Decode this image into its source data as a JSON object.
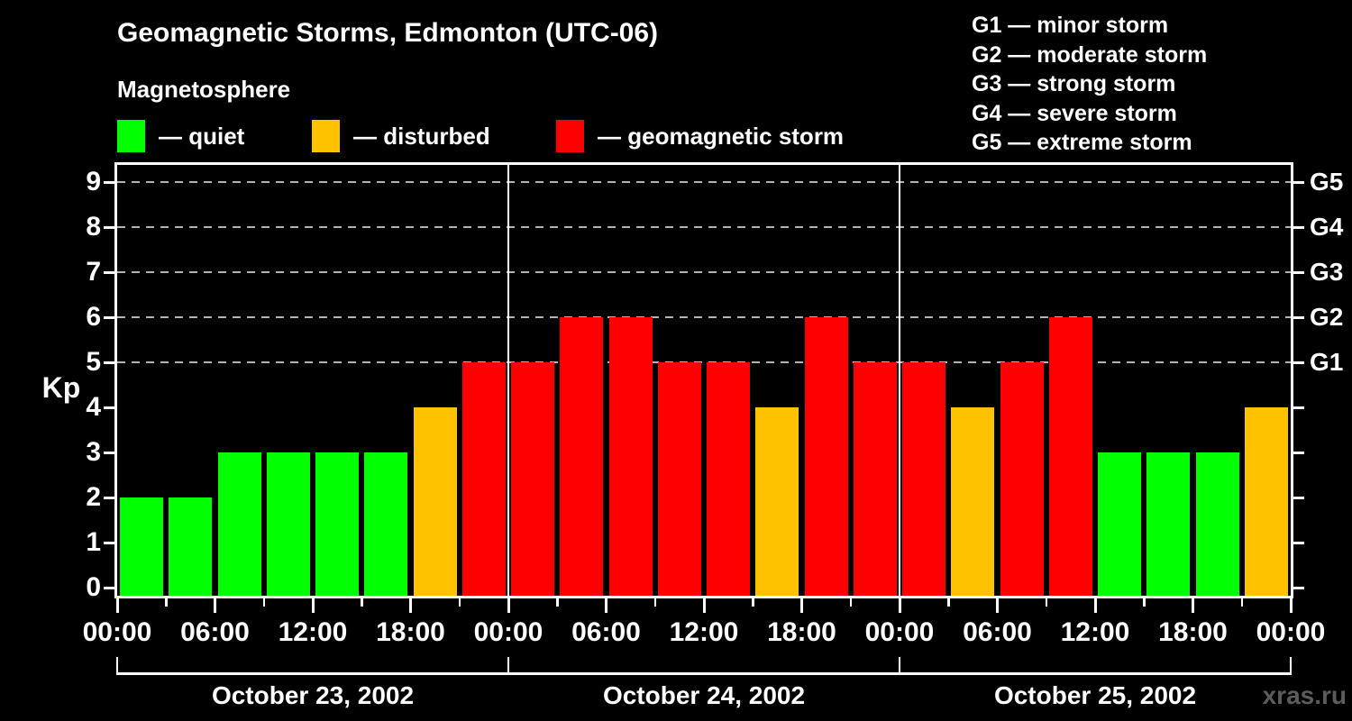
{
  "header": {
    "title": "Geomagnetic Storms, Edmonton (UTC-06)",
    "subtitle": "Magnetosphere",
    "legend": [
      {
        "name": "quiet",
        "label": "— quiet",
        "color": "#00ff00"
      },
      {
        "name": "disturbed",
        "label": "— disturbed",
        "color": "#ffc200"
      },
      {
        "name": "storm",
        "label": "— geomagnetic storm",
        "color": "#ff0000"
      }
    ],
    "g_scale_legend": [
      "G1 — minor storm",
      "G2 — moderate storm",
      "G3 — strong storm",
      "G4 — severe storm",
      "G5 — extreme storm"
    ]
  },
  "chart_data": {
    "type": "bar",
    "title": "Geomagnetic Storms, Edmonton (UTC-06)",
    "ylabel": "Kp",
    "ylim": [
      0,
      9.4
    ],
    "yticks": [
      0,
      1,
      2,
      3,
      4,
      5,
      6,
      7,
      8,
      9
    ],
    "gridlines_at": [
      5,
      6,
      7,
      8,
      9
    ],
    "grid": "dashed horizontal at storm levels only",
    "right_axis_labels": [
      {
        "label": "G1",
        "kp": 5
      },
      {
        "label": "G2",
        "kp": 6
      },
      {
        "label": "G3",
        "kp": 7
      },
      {
        "label": "G4",
        "kp": 8
      },
      {
        "label": "G5",
        "kp": 9
      }
    ],
    "x_tick_labels_per_day": [
      "00:00",
      "06:00",
      "12:00",
      "18:00"
    ],
    "x_final_label": "00:00",
    "bar_interval_hours": 3,
    "days": [
      {
        "date": "October 23, 2002",
        "values": [
          2,
          2,
          3,
          3,
          3,
          3,
          4,
          5
        ]
      },
      {
        "date": "October 24, 2002",
        "values": [
          5,
          6,
          6,
          5,
          5,
          4,
          6,
          5
        ]
      },
      {
        "date": "October 25, 2002",
        "values": [
          5,
          4,
          5,
          6,
          3,
          3,
          3,
          4
        ]
      }
    ],
    "color_rule": {
      "quiet": "Kp <= 3",
      "disturbed": "Kp == 4",
      "storm": "Kp >= 5"
    },
    "colors": {
      "quiet": "#00ff00",
      "disturbed": "#ffc200",
      "storm": "#ff0000"
    }
  },
  "footer": {
    "watermark": "xras.ru"
  }
}
